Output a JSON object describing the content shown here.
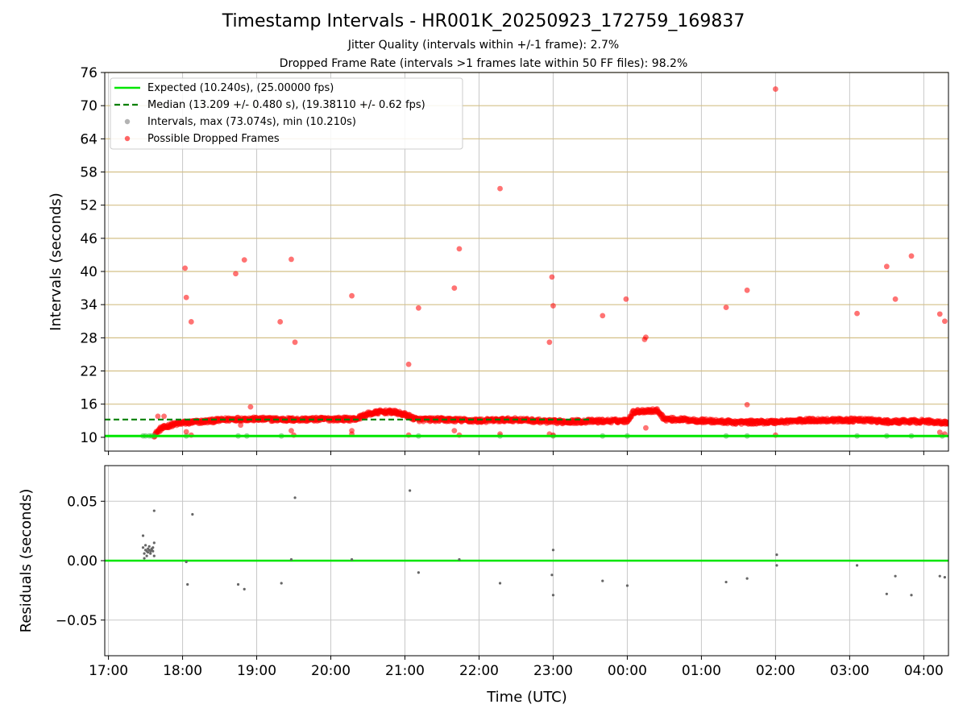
{
  "titles": {
    "main": "Timestamp Intervals - HR001K_20250923_172759_169837",
    "sub1": "Jitter Quality (intervals within +/-1 frame): 2.7%",
    "sub2": "Dropped Frame Rate (intervals >1 frames late within 50 FF files): 98.2%"
  },
  "colors": {
    "expected": "#00e600",
    "median": "#008000",
    "dropped": "#ff0000",
    "intervals": "#808080",
    "hgrid_top": "#d4c088",
    "grid": "#c8c8c8"
  },
  "chart_data": [
    {
      "type": "scatter",
      "title": "",
      "xlabel": "",
      "ylabel": "Intervals (seconds)",
      "xlim": [
        "16:57",
        "04:20"
      ],
      "ylim": [
        7.5,
        76
      ],
      "yticks": [
        10,
        16,
        22,
        28,
        34,
        40,
        46,
        52,
        58,
        64,
        70,
        76
      ],
      "grid": true,
      "legend_position": "top-left",
      "legend": [
        "Expected (10.240s), (25.00000 fps)",
        "Median (13.209 +/- 0.480 s), (19.38110 +/- 0.62 fps)",
        "Intervals, max (73.074s), min (10.210s)",
        "Possible Dropped Frames"
      ],
      "reference_lines": [
        {
          "name": "Expected (10.240s), (25.00000 fps)",
          "y": 10.24,
          "style": "solid"
        },
        {
          "name": "Median (13.209 +/- 0.480 s), (19.38110 +/- 0.62 fps)",
          "y": 13.209,
          "style": "dashed",
          "x_end": "23:30"
        }
      ],
      "series": [
        {
          "name": "Possible Dropped Frames",
          "band_trend": [
            [
              "17:37",
              10.4
            ],
            [
              "17:42",
              11.5
            ],
            [
              "17:50",
              12.2
            ],
            [
              "18:00",
              12.6
            ],
            [
              "18:20",
              12.9
            ],
            [
              "18:40",
              13.3
            ],
            [
              "19:00",
              13.3
            ],
            [
              "19:30",
              13.2
            ],
            [
              "20:00",
              13.3
            ],
            [
              "20:20",
              13.3
            ],
            [
              "20:30",
              14.2
            ],
            [
              "20:40",
              14.6
            ],
            [
              "20:50",
              14.6
            ],
            [
              "21:00",
              14.1
            ],
            [
              "21:10",
              13.2
            ],
            [
              "21:30",
              13.2
            ],
            [
              "22:00",
              13.0
            ],
            [
              "22:30",
              13.2
            ],
            [
              "23:00",
              12.8
            ],
            [
              "23:30",
              12.9
            ],
            [
              "00:00",
              13.0
            ],
            [
              "00:05",
              14.6
            ],
            [
              "00:15",
              14.8
            ],
            [
              "00:25",
              14.8
            ],
            [
              "00:30",
              13.3
            ],
            [
              "00:45",
              13.2
            ],
            [
              "01:00",
              13.0
            ],
            [
              "01:30",
              12.7
            ],
            [
              "02:00",
              12.8
            ],
            [
              "02:30",
              13.1
            ],
            [
              "03:00",
              13.1
            ],
            [
              "03:15",
              13.1
            ],
            [
              "03:30",
              12.8
            ],
            [
              "04:00",
              12.9
            ],
            [
              "04:20",
              12.6
            ]
          ],
          "points": [
            [
              "17:40",
              13.8
            ],
            [
              "17:45",
              13.8
            ],
            [
              "18:02",
              40.6
            ],
            [
              "18:03",
              35.3
            ],
            [
              "18:07",
              30.9
            ],
            [
              "18:03",
              11.0
            ],
            [
              "18:07",
              10.4
            ],
            [
              "18:43",
              39.6
            ],
            [
              "18:50",
              42.1
            ],
            [
              "18:47",
              12.2
            ],
            [
              "18:55",
              15.5
            ],
            [
              "19:19",
              30.9
            ],
            [
              "19:28",
              42.2
            ],
            [
              "19:31",
              27.2
            ],
            [
              "19:28",
              11.2
            ],
            [
              "19:30",
              10.4
            ],
            [
              "20:17",
              35.6
            ],
            [
              "20:17",
              10.6
            ],
            [
              "20:17",
              11.2
            ],
            [
              "21:03",
              23.2
            ],
            [
              "21:03",
              10.4
            ],
            [
              "21:11",
              33.4
            ],
            [
              "21:40",
              37.0
            ],
            [
              "21:44",
              44.1
            ],
            [
              "21:40",
              11.2
            ],
            [
              "21:44",
              10.4
            ],
            [
              "22:17",
              55.0
            ],
            [
              "22:17",
              10.6
            ],
            [
              "22:57",
              27.2
            ],
            [
              "22:59",
              39.0
            ],
            [
              "23:00",
              33.8
            ],
            [
              "22:57",
              10.6
            ],
            [
              "23:00",
              10.4
            ],
            [
              "23:40",
              32.0
            ],
            [
              "23:59",
              35.0
            ],
            [
              "00:14",
              27.7
            ],
            [
              "00:15",
              28.1
            ],
            [
              "00:15",
              11.7
            ],
            [
              "01:20",
              33.5
            ],
            [
              "01:37",
              36.6
            ],
            [
              "01:37",
              15.9
            ],
            [
              "02:00",
              73.0
            ],
            [
              "02:00",
              10.4
            ],
            [
              "03:06",
              32.4
            ],
            [
              "03:30",
              40.9
            ],
            [
              "03:37",
              35.0
            ],
            [
              "03:50",
              42.8
            ],
            [
              "04:13",
              32.3
            ],
            [
              "04:17",
              31.0
            ],
            [
              "04:13",
              10.9
            ],
            [
              "04:17",
              10.6
            ],
            [
              "04:19",
              12.5
            ]
          ]
        },
        {
          "name": "Intervals, max (73.074s), min (10.210s)",
          "points": [
            [
              "17:28",
              10.25
            ],
            [
              "17:30",
              10.25
            ],
            [
              "17:33",
              10.25
            ],
            [
              "17:35",
              10.25
            ],
            [
              "17:37",
              10.25
            ],
            [
              "18:03",
              10.24
            ],
            [
              "18:45",
              10.24
            ],
            [
              "18:52",
              10.24
            ],
            [
              "19:20",
              10.24
            ],
            [
              "21:11",
              10.24
            ],
            [
              "22:17",
              10.24
            ],
            [
              "23:00",
              10.24
            ],
            [
              "23:40",
              10.24
            ],
            [
              "00:00",
              10.24
            ],
            [
              "01:20",
              10.24
            ],
            [
              "01:37",
              10.24
            ],
            [
              "03:06",
              10.24
            ],
            [
              "03:30",
              10.24
            ],
            [
              "03:50",
              10.24
            ],
            [
              "04:15",
              10.24
            ]
          ]
        }
      ]
    },
    {
      "type": "scatter",
      "title": "",
      "xlabel": "Time (UTC)",
      "ylabel": "Residuals (seconds)",
      "xlim": [
        "16:57",
        "04:20"
      ],
      "ylim": [
        -0.08,
        0.08
      ],
      "yticks": [
        -0.05,
        0.0,
        0.05
      ],
      "ytick_labels": [
        "−0.05",
        "0.00",
        "0.05"
      ],
      "xticks": [
        "17:00",
        "18:00",
        "19:00",
        "20:00",
        "21:00",
        "22:00",
        "23:00",
        "00:00",
        "01:00",
        "02:00",
        "03:00",
        "04:00"
      ],
      "grid": true,
      "reference_lines": [
        {
          "name": "Expected",
          "y": 0.0,
          "style": "solid"
        }
      ],
      "series": [
        {
          "name": "Residuals",
          "points": [
            [
              "17:28",
              0.021
            ],
            [
              "17:28",
              0.011
            ],
            [
              "17:29",
              0.006
            ],
            [
              "17:29",
              0.002
            ],
            [
              "17:30",
              0.009
            ],
            [
              "17:30",
              0.013
            ],
            [
              "17:31",
              0.008
            ],
            [
              "17:31",
              0.004
            ],
            [
              "17:32",
              0.01
            ],
            [
              "17:32",
              0.007
            ],
            [
              "17:33",
              0.009
            ],
            [
              "17:33",
              0.012
            ],
            [
              "17:34",
              0.008
            ],
            [
              "17:34",
              0.006
            ],
            [
              "17:35",
              0.01
            ],
            [
              "17:35",
              0.009
            ],
            [
              "17:36",
              0.008
            ],
            [
              "17:36",
              0.011
            ],
            [
              "17:37",
              0.015
            ],
            [
              "17:37",
              0.004
            ],
            [
              "17:37",
              0.042
            ],
            [
              "18:03",
              -0.001
            ],
            [
              "18:04",
              -0.02
            ],
            [
              "18:08",
              0.039
            ],
            [
              "18:45",
              -0.02
            ],
            [
              "18:50",
              -0.024
            ],
            [
              "19:20",
              -0.019
            ],
            [
              "19:28",
              0.001
            ],
            [
              "19:31",
              0.053
            ],
            [
              "20:17",
              0.001
            ],
            [
              "21:04",
              0.059
            ],
            [
              "21:11",
              -0.01
            ],
            [
              "21:44",
              0.001
            ],
            [
              "22:17",
              -0.019
            ],
            [
              "22:59",
              -0.012
            ],
            [
              "23:00",
              0.009
            ],
            [
              "23:00",
              -0.029
            ],
            [
              "23:40",
              -0.017
            ],
            [
              "00:00",
              -0.021
            ],
            [
              "01:20",
              -0.018
            ],
            [
              "01:37",
              -0.015
            ],
            [
              "02:01",
              0.005
            ],
            [
              "02:01",
              -0.004
            ],
            [
              "03:06",
              -0.004
            ],
            [
              "03:30",
              -0.028
            ],
            [
              "03:37",
              -0.013
            ],
            [
              "03:50",
              -0.029
            ],
            [
              "04:13",
              -0.013
            ],
            [
              "04:17",
              -0.014
            ]
          ]
        }
      ]
    }
  ]
}
